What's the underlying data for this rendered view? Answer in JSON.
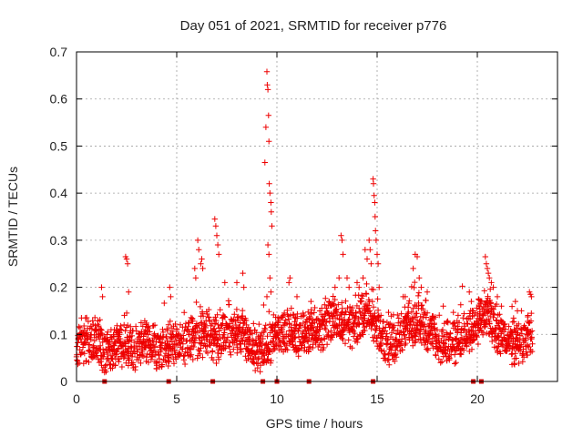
{
  "colors": {
    "points": "#ee0000",
    "markers": "#cc0000",
    "grid": "#a0a0a0"
  },
  "chart_data": {
    "type": "scatter",
    "marker": "plus",
    "title": "Day 051 of 2021, SRMTID for receiver p776",
    "xlabel": "GPS time / hours",
    "ylabel": "SRMTID / TECUs",
    "xlim": [
      0,
      24
    ],
    "ylim": [
      0,
      0.7
    ],
    "xticks": [
      0,
      5,
      10,
      15,
      20
    ],
    "yticks": [
      0,
      0.1,
      0.2,
      0.3,
      0.4,
      0.5,
      0.6,
      0.7
    ],
    "grid": true,
    "baseline_markers": [
      1.4,
      4.6,
      6.8,
      9.3,
      10.0,
      11.6,
      14.8,
      19.8,
      20.2
    ],
    "anchors": [
      [
        0.0,
        0.08
      ],
      [
        0.5,
        0.09
      ],
      [
        1.0,
        0.09
      ],
      [
        1.4,
        0.06
      ],
      [
        1.8,
        0.07
      ],
      [
        2.3,
        0.08
      ],
      [
        2.8,
        0.07
      ],
      [
        3.5,
        0.08
      ],
      [
        4.0,
        0.07
      ],
      [
        4.5,
        0.08
      ],
      [
        5.0,
        0.07
      ],
      [
        5.5,
        0.09
      ],
      [
        6.0,
        0.09
      ],
      [
        6.4,
        0.1
      ],
      [
        7.0,
        0.09
      ],
      [
        7.8,
        0.1
      ],
      [
        8.3,
        0.11
      ],
      [
        8.8,
        0.07
      ],
      [
        9.2,
        0.06
      ],
      [
        9.5,
        0.07
      ],
      [
        10.0,
        0.1
      ],
      [
        10.6,
        0.11
      ],
      [
        11.0,
        0.1
      ],
      [
        11.5,
        0.1
      ],
      [
        12.0,
        0.11
      ],
      [
        12.5,
        0.12
      ],
      [
        13.0,
        0.14
      ],
      [
        13.5,
        0.12
      ],
      [
        14.0,
        0.11
      ],
      [
        14.5,
        0.15
      ],
      [
        15.0,
        0.11
      ],
      [
        15.5,
        0.08
      ],
      [
        16.0,
        0.09
      ],
      [
        16.5,
        0.12
      ],
      [
        17.0,
        0.13
      ],
      [
        17.5,
        0.11
      ],
      [
        18.0,
        0.09
      ],
      [
        18.5,
        0.08
      ],
      [
        19.0,
        0.09
      ],
      [
        19.5,
        0.1
      ],
      [
        20.0,
        0.12
      ],
      [
        20.5,
        0.14
      ],
      [
        21.0,
        0.1
      ],
      [
        21.5,
        0.09
      ],
      [
        22.0,
        0.08
      ],
      [
        22.7,
        0.1
      ]
    ],
    "spikes": [
      [
        1.25,
        0.2
      ],
      [
        1.3,
        0.18
      ],
      [
        2.45,
        0.265
      ],
      [
        2.5,
        0.26
      ],
      [
        2.55,
        0.25
      ],
      [
        2.6,
        0.19
      ],
      [
        4.65,
        0.2
      ],
      [
        4.7,
        0.18
      ],
      [
        5.9,
        0.24
      ],
      [
        5.95,
        0.22
      ],
      [
        6.05,
        0.3
      ],
      [
        6.1,
        0.28
      ],
      [
        6.2,
        0.25
      ],
      [
        6.25,
        0.26
      ],
      [
        6.3,
        0.24
      ],
      [
        6.9,
        0.345
      ],
      [
        6.95,
        0.33
      ],
      [
        7.0,
        0.31
      ],
      [
        7.05,
        0.29
      ],
      [
        7.1,
        0.27
      ],
      [
        7.4,
        0.21
      ],
      [
        8.0,
        0.21
      ],
      [
        8.3,
        0.23
      ],
      [
        8.35,
        0.2
      ],
      [
        9.4,
        0.465
      ],
      [
        9.45,
        0.54
      ],
      [
        9.5,
        0.658
      ],
      [
        9.52,
        0.63
      ],
      [
        9.55,
        0.62
      ],
      [
        9.58,
        0.565
      ],
      [
        9.6,
        0.51
      ],
      [
        9.62,
        0.42
      ],
      [
        9.65,
        0.4
      ],
      [
        9.7,
        0.38
      ],
      [
        9.72,
        0.36
      ],
      [
        9.75,
        0.33
      ],
      [
        9.55,
        0.29
      ],
      [
        9.6,
        0.27
      ],
      [
        9.65,
        0.22
      ],
      [
        9.7,
        0.19
      ],
      [
        9.5,
        0.18
      ],
      [
        10.6,
        0.21
      ],
      [
        10.65,
        0.22
      ],
      [
        11.0,
        0.18
      ],
      [
        11.7,
        0.17
      ],
      [
        12.6,
        0.17
      ],
      [
        12.9,
        0.2
      ],
      [
        13.2,
        0.31
      ],
      [
        13.25,
        0.3
      ],
      [
        13.3,
        0.27
      ],
      [
        13.1,
        0.22
      ],
      [
        13.5,
        0.22
      ],
      [
        13.6,
        0.2
      ],
      [
        14.0,
        0.21
      ],
      [
        14.1,
        0.2
      ],
      [
        14.3,
        0.22
      ],
      [
        14.4,
        0.28
      ],
      [
        14.5,
        0.26
      ],
      [
        14.6,
        0.3
      ],
      [
        14.65,
        0.28
      ],
      [
        14.7,
        0.25
      ],
      [
        14.8,
        0.43
      ],
      [
        14.82,
        0.42
      ],
      [
        14.85,
        0.395
      ],
      [
        14.88,
        0.38
      ],
      [
        14.9,
        0.35
      ],
      [
        14.92,
        0.32
      ],
      [
        14.95,
        0.3
      ],
      [
        15.0,
        0.27
      ],
      [
        15.05,
        0.25
      ],
      [
        15.1,
        0.2
      ],
      [
        16.3,
        0.18
      ],
      [
        16.4,
        0.18
      ],
      [
        16.8,
        0.24
      ],
      [
        16.9,
        0.27
      ],
      [
        17.0,
        0.265
      ],
      [
        17.1,
        0.22
      ],
      [
        17.2,
        0.2
      ],
      [
        17.5,
        0.19
      ],
      [
        18.3,
        0.16
      ],
      [
        19.6,
        0.19
      ],
      [
        19.7,
        0.17
      ],
      [
        20.4,
        0.265
      ],
      [
        20.45,
        0.25
      ],
      [
        20.5,
        0.24
      ],
      [
        20.55,
        0.23
      ],
      [
        20.6,
        0.22
      ],
      [
        20.7,
        0.21
      ],
      [
        20.8,
        0.2
      ],
      [
        21.0,
        0.18
      ],
      [
        21.2,
        0.16
      ],
      [
        21.9,
        0.17
      ],
      [
        22.0,
        0.15
      ],
      [
        22.6,
        0.19
      ],
      [
        22.65,
        0.185
      ],
      [
        22.7,
        0.18
      ],
      [
        22.2,
        0.15
      ]
    ]
  }
}
